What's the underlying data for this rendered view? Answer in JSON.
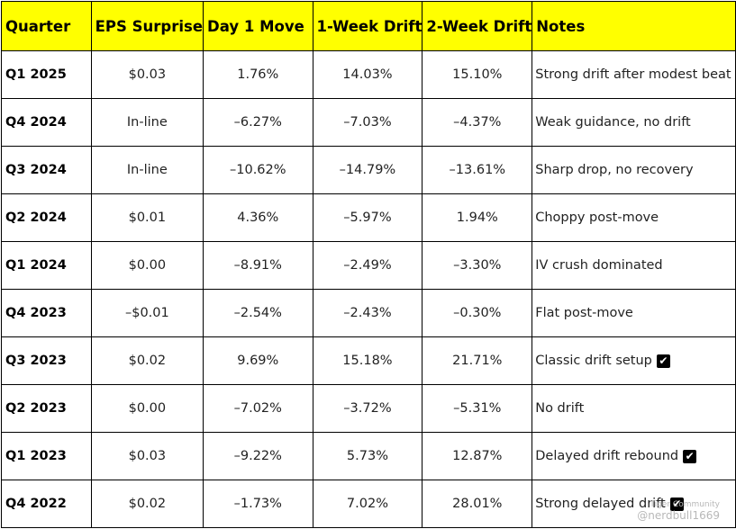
{
  "headers": [
    "Quarter",
    "EPS Surprise",
    "Day 1 Move",
    "1-Week Drift",
    "2-Week Drift",
    "Notes"
  ],
  "rows": [
    {
      "quarter": "Q1 2025",
      "eps": "$0.03",
      "day1": "1.76%",
      "w1": "14.03%",
      "w2": "15.10%",
      "notes": "Strong drift after modest beat",
      "check": false
    },
    {
      "quarter": "Q4 2024",
      "eps": "In-line",
      "day1": "–6.27%",
      "w1": "–7.03%",
      "w2": "–4.37%",
      "notes": "Weak guidance, no drift",
      "check": false
    },
    {
      "quarter": "Q3 2024",
      "eps": "In-line",
      "day1": "–10.62%",
      "w1": "–14.79%",
      "w2": "–13.61%",
      "notes": "Sharp drop, no recovery",
      "check": false
    },
    {
      "quarter": "Q2 2024",
      "eps": "$0.01",
      "day1": "4.36%",
      "w1": "–5.97%",
      "w2": "1.94%",
      "notes": "Choppy post-move",
      "check": false
    },
    {
      "quarter": "Q1 2024",
      "eps": "$0.00",
      "day1": "–8.91%",
      "w1": "–2.49%",
      "w2": "–3.30%",
      "notes": "IV crush dominated",
      "check": false
    },
    {
      "quarter": "Q4 2023",
      "eps": "–$0.01",
      "day1": "–2.54%",
      "w1": "–2.43%",
      "w2": "–0.30%",
      "notes": "Flat post-move",
      "check": false
    },
    {
      "quarter": "Q3 2023",
      "eps": "$0.02",
      "day1": "9.69%",
      "w1": "15.18%",
      "w2": "21.71%",
      "notes": "Classic drift setup",
      "check": true
    },
    {
      "quarter": "Q2 2023",
      "eps": "$0.00",
      "day1": "–7.02%",
      "w1": "–3.72%",
      "w2": "–5.31%",
      "notes": "No drift",
      "check": false
    },
    {
      "quarter": "Q1 2023",
      "eps": "$0.03",
      "day1": "–9.22%",
      "w1": "5.73%",
      "w2": "12.87%",
      "notes": "Delayed drift rebound",
      "check": true
    },
    {
      "quarter": "Q4 2022",
      "eps": "$0.02",
      "day1": "–1.73%",
      "w1": "7.02%",
      "w2": "28.01%",
      "notes": "Strong delayed drift",
      "check": true
    }
  ],
  "check_glyph": "✔",
  "watermark": {
    "line1": "Tiger Community",
    "line2": "@nerdbull1669"
  },
  "colors": {
    "header_bg": "#ffff00",
    "border": "#000000",
    "watermark": "#b8b8b8"
  }
}
